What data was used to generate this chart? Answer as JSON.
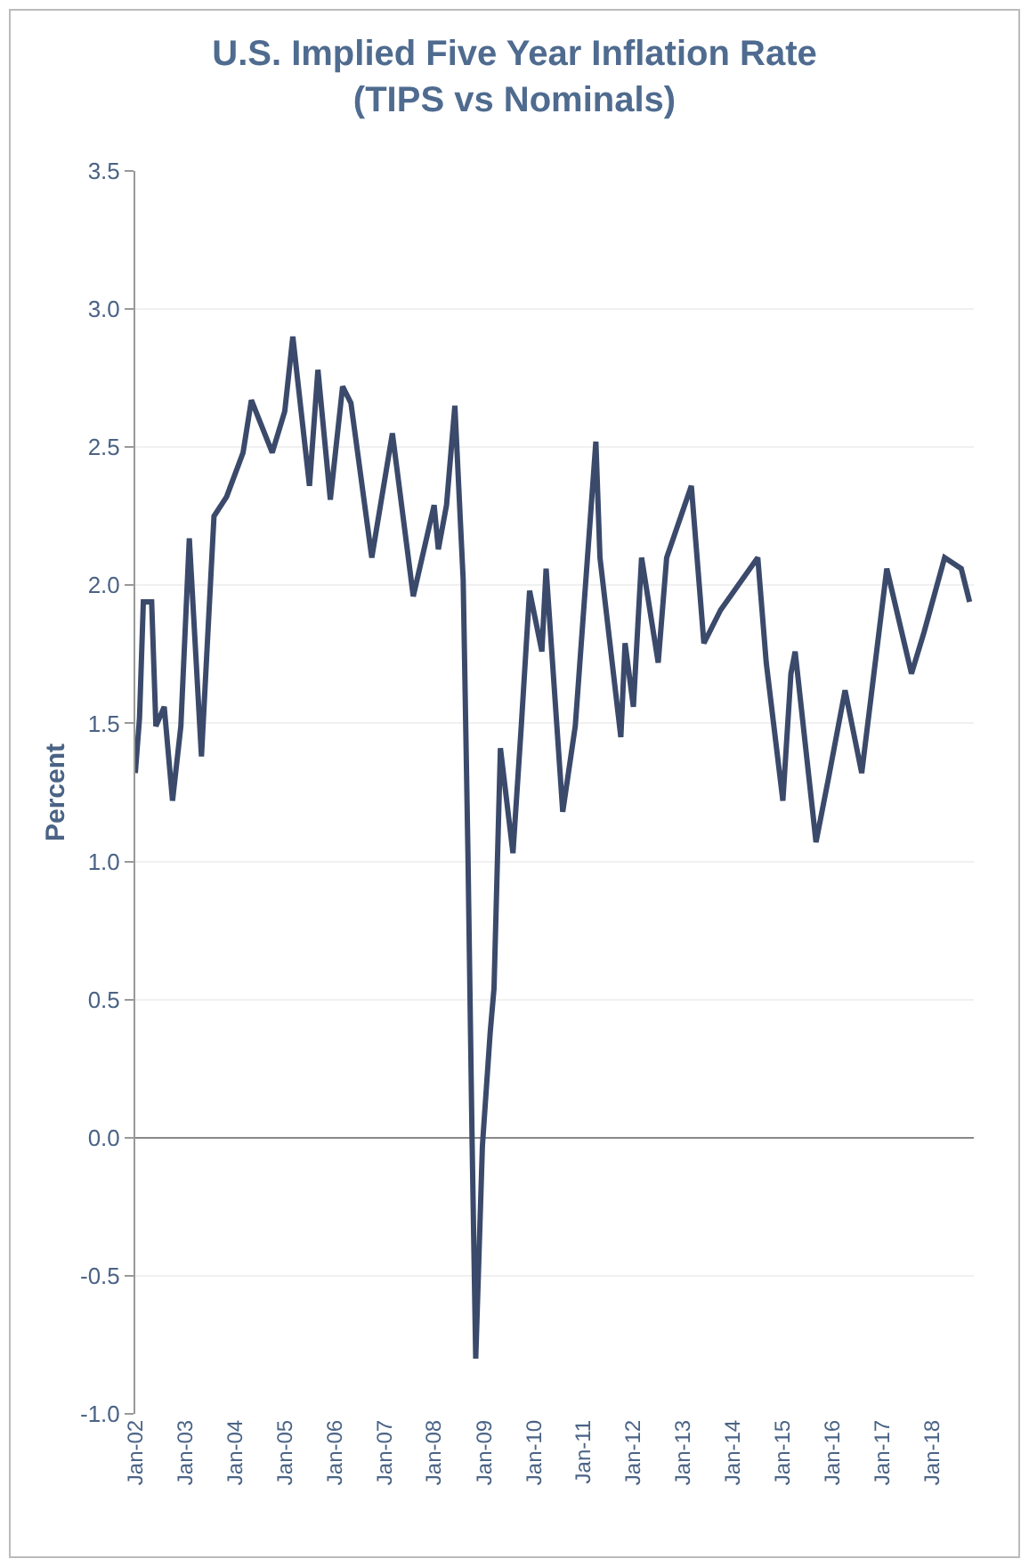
{
  "chart_data": {
    "type": "line",
    "title": "U.S. Implied Five Year Inflation Rate (TIPS vs Nominals)",
    "ylabel": "Percent",
    "x": [
      "2002-01",
      "2002-02",
      "2002-03",
      "2002-05",
      "2002-06",
      "2002-08",
      "2002-10",
      "2002-12",
      "2003-02",
      "2003-05",
      "2003-08",
      "2003-11",
      "2004-03",
      "2004-05",
      "2004-10",
      "2005-01",
      "2005-03",
      "2005-07",
      "2005-09",
      "2005-12",
      "2006-03",
      "2006-05",
      "2006-10",
      "2007-03",
      "2007-08",
      "2008-01",
      "2008-02",
      "2008-04",
      "2008-06",
      "2008-08",
      "2008-09-05",
      "2008-10-05",
      "2008-11-01",
      "2008-12-20",
      "2009-02-15",
      "2009-03-15",
      "2009-05",
      "2009-08",
      "2009-10",
      "2009-12",
      "2010-03",
      "2010-04",
      "2010-08",
      "2010-11",
      "2011-04",
      "2011-05",
      "2011-10",
      "2011-11",
      "2012-01",
      "2012-03",
      "2012-07",
      "2012-09",
      "2013-03",
      "2013-06",
      "2013-10",
      "2014-07",
      "2014-09",
      "2015-01",
      "2015-03",
      "2015-04",
      "2015-09",
      "2015-12",
      "2016-04",
      "2016-08",
      "2017-02",
      "2017-08",
      "2017-11",
      "2018-04",
      "2018-08",
      "2018-10"
    ],
    "series": [
      {
        "color": "#3b4a6b",
        "values": [
          1.32,
          1.52,
          1.94,
          1.94,
          1.49,
          1.56,
          1.22,
          1.49,
          2.17,
          1.38,
          2.25,
          2.32,
          2.48,
          2.67,
          2.48,
          2.63,
          2.9,
          2.36,
          2.78,
          2.31,
          2.72,
          2.66,
          2.1,
          2.55,
          1.96,
          2.29,
          2.13,
          2.29,
          2.65,
          2.02,
          1.03,
          0.0,
          -0.8,
          -0.03,
          0.38,
          0.54,
          1.41,
          1.03,
          1.49,
          1.98,
          1.76,
          2.06,
          1.18,
          1.49,
          2.52,
          2.1,
          1.45,
          1.79,
          1.56,
          2.1,
          1.72,
          2.1,
          2.36,
          1.79,
          1.91,
          2.1,
          1.72,
          1.22,
          1.68,
          1.76,
          1.07,
          1.3,
          1.62,
          1.32,
          2.06,
          1.68,
          1.83,
          2.1,
          2.06,
          1.94
        ]
      }
    ],
    "xlim": [
      "2002-01",
      "2018-11"
    ],
    "xticks": [
      {
        "value": "2002-01",
        "label": "Jan-02"
      },
      {
        "value": "2003-01",
        "label": "Jan-03"
      },
      {
        "value": "2004-01",
        "label": "Jan-04"
      },
      {
        "value": "2005-01",
        "label": "Jan-05"
      },
      {
        "value": "2006-01",
        "label": "Jan-06"
      },
      {
        "value": "2007-01",
        "label": "Jan-07"
      },
      {
        "value": "2008-01",
        "label": "Jan-08"
      },
      {
        "value": "2009-01",
        "label": "Jan-09"
      },
      {
        "value": "2010-01",
        "label": "Jan-10"
      },
      {
        "value": "2011-01",
        "label": "Jan-11"
      },
      {
        "value": "2012-01",
        "label": "Jan-12"
      },
      {
        "value": "2013-01",
        "label": "Jan-13"
      },
      {
        "value": "2014-01",
        "label": "Jan-14"
      },
      {
        "value": "2015-01",
        "label": "Jan-15"
      },
      {
        "value": "2016-01",
        "label": "Jan-16"
      },
      {
        "value": "2017-01",
        "label": "Jan-17"
      },
      {
        "value": "2018-01",
        "label": "Jan-18"
      }
    ],
    "ylim": [
      -1,
      3.5
    ],
    "yticks": [
      {
        "value": 3.5,
        "label": "3.5"
      },
      {
        "value": 3,
        "label": "3.0"
      },
      {
        "value": 2.5,
        "label": "2.5"
      },
      {
        "value": 2,
        "label": "2.0"
      },
      {
        "value": 1.5,
        "label": "1.5"
      },
      {
        "value": 1,
        "label": "1.0"
      },
      {
        "value": 0.5,
        "label": "0.5"
      },
      {
        "value": 0,
        "label": "0.0"
      },
      {
        "value": -0.5,
        "label": "-0.5"
      },
      {
        "value": -1,
        "label": "-1.0"
      }
    ],
    "grid": "y",
    "line_style": "solid"
  }
}
